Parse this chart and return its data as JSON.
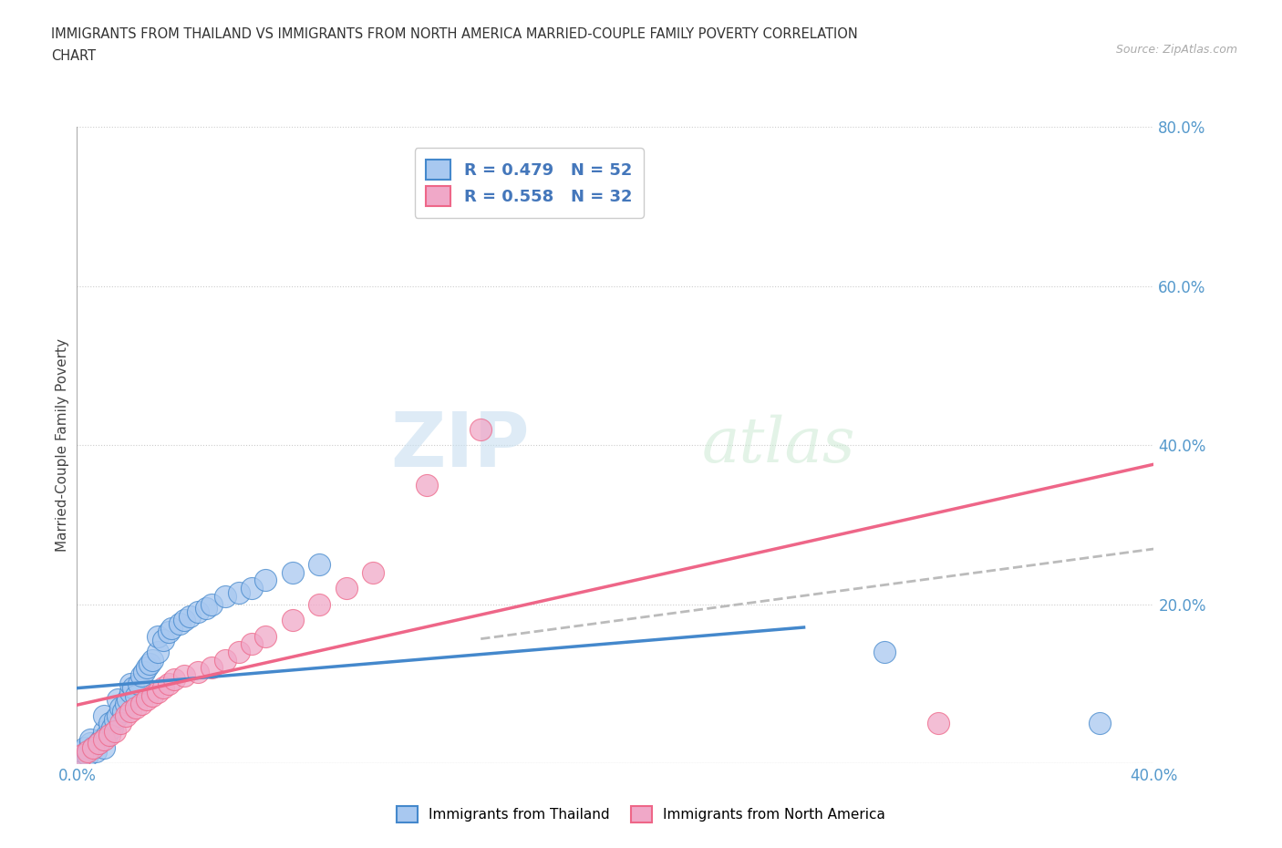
{
  "title_line1": "IMMIGRANTS FROM THAILAND VS IMMIGRANTS FROM NORTH AMERICA MARRIED-COUPLE FAMILY POVERTY CORRELATION",
  "title_line2": "CHART",
  "source": "Source: ZipAtlas.com",
  "ylabel": "Married-Couple Family Poverty",
  "xlim": [
    0.0,
    0.4
  ],
  "ylim": [
    0.0,
    0.8
  ],
  "xticks": [
    0.0,
    0.05,
    0.1,
    0.15,
    0.2,
    0.25,
    0.3,
    0.35,
    0.4
  ],
  "xticklabels": [
    "0.0%",
    "",
    "",
    "",
    "",
    "",
    "",
    "",
    "40.0%"
  ],
  "yticks": [
    0.0,
    0.2,
    0.4,
    0.6,
    0.8
  ],
  "yticklabels": [
    "",
    "20.0%",
    "40.0%",
    "60.0%",
    "80.0%"
  ],
  "R_thailand": 0.479,
  "N_thailand": 52,
  "R_northamerica": 0.558,
  "N_northamerica": 32,
  "color_thailand": "#a8c8f0",
  "color_northamerica": "#f0a8c8",
  "line_color_thailand": "#4488cc",
  "line_color_northamerica": "#ee6688",
  "line_color_combined": "#bbbbbb",
  "watermark_zip": "ZIP",
  "watermark_atlas": "atlas",
  "thailand_x": [
    0.001,
    0.002,
    0.003,
    0.004,
    0.005,
    0.005,
    0.006,
    0.007,
    0.008,
    0.009,
    0.01,
    0.01,
    0.01,
    0.011,
    0.012,
    0.013,
    0.014,
    0.015,
    0.015,
    0.016,
    0.017,
    0.018,
    0.019,
    0.02,
    0.02,
    0.021,
    0.022,
    0.023,
    0.024,
    0.025,
    0.026,
    0.027,
    0.028,
    0.03,
    0.03,
    0.032,
    0.034,
    0.035,
    0.038,
    0.04,
    0.042,
    0.045,
    0.048,
    0.05,
    0.055,
    0.06,
    0.065,
    0.07,
    0.08,
    0.09,
    0.3,
    0.38
  ],
  "thailand_y": [
    0.01,
    0.015,
    0.02,
    0.01,
    0.025,
    0.03,
    0.02,
    0.015,
    0.025,
    0.03,
    0.02,
    0.04,
    0.06,
    0.035,
    0.05,
    0.045,
    0.055,
    0.06,
    0.08,
    0.07,
    0.065,
    0.075,
    0.08,
    0.09,
    0.1,
    0.095,
    0.085,
    0.1,
    0.11,
    0.115,
    0.12,
    0.125,
    0.13,
    0.14,
    0.16,
    0.155,
    0.165,
    0.17,
    0.175,
    0.18,
    0.185,
    0.19,
    0.195,
    0.2,
    0.21,
    0.215,
    0.22,
    0.23,
    0.24,
    0.25,
    0.14,
    0.05
  ],
  "northamerica_x": [
    0.002,
    0.004,
    0.006,
    0.008,
    0.01,
    0.012,
    0.014,
    0.016,
    0.018,
    0.02,
    0.022,
    0.024,
    0.026,
    0.028,
    0.03,
    0.032,
    0.034,
    0.036,
    0.04,
    0.045,
    0.05,
    0.055,
    0.06,
    0.065,
    0.07,
    0.08,
    0.09,
    0.1,
    0.11,
    0.15,
    0.32,
    0.13
  ],
  "northamerica_y": [
    0.01,
    0.015,
    0.02,
    0.025,
    0.03,
    0.035,
    0.04,
    0.05,
    0.06,
    0.065,
    0.07,
    0.075,
    0.08,
    0.085,
    0.09,
    0.095,
    0.1,
    0.105,
    0.11,
    0.115,
    0.12,
    0.13,
    0.14,
    0.15,
    0.16,
    0.18,
    0.2,
    0.22,
    0.24,
    0.42,
    0.05,
    0.35
  ]
}
